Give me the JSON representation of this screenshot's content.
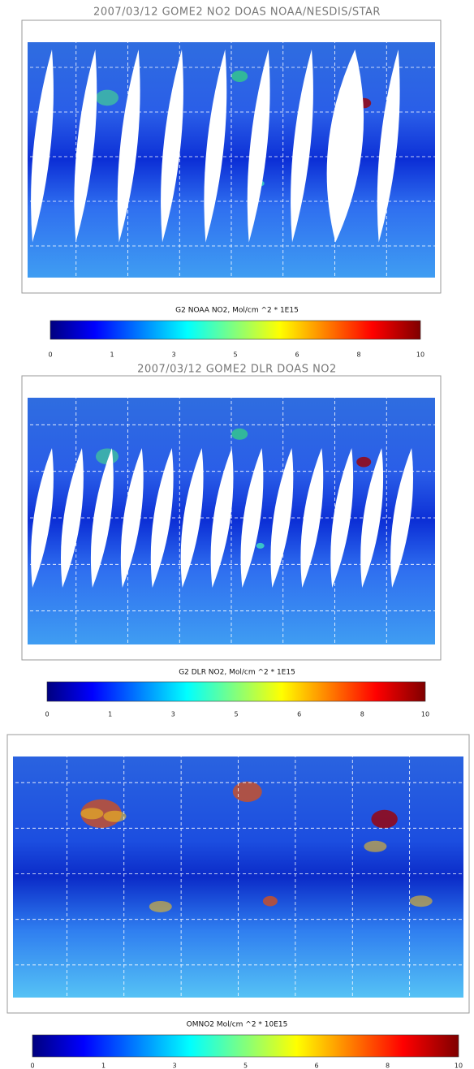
{
  "panels": [
    {
      "title": "2007/03/12 GOME2 NO2 DOAS NOAA/NESDIS/STAR",
      "colorbar_label": "G2 NOAA NO2, Mol/cm ^2 * 1E15",
      "colorbar_ticks": [
        "0",
        "1",
        "3",
        "5",
        "6",
        "8",
        "10"
      ]
    },
    {
      "title": "2007/03/12 GOME2 DLR DOAS NO2",
      "colorbar_label": "G2 DLR NO2, Mol/cm ^2 * 1E15",
      "colorbar_ticks": [
        "0",
        "1",
        "3",
        "5",
        "6",
        "8",
        "10"
      ]
    },
    {
      "colorbar_label": "OMNO2 Mol/cm ^2 * 10E15",
      "colorbar_ticks": [
        "0",
        "1",
        "3",
        "5",
        "6",
        "8",
        "10"
      ]
    }
  ]
}
